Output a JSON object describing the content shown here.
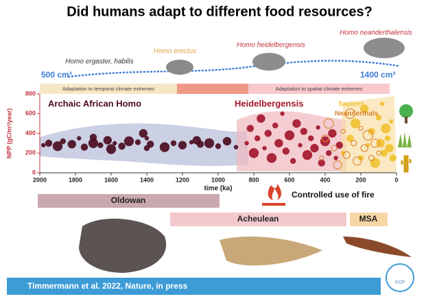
{
  "title": "Did humans adapt to different food resources?",
  "species": [
    "Homo ergaster, habilis",
    "Homo erectus",
    "Homo  heidelbergensis",
    "Homo  neanderthalensis"
  ],
  "brain_volume_start": "500 cm³",
  "brain_volume_end": "1400 cm³",
  "climate_bands": [
    "Adaptation to temporal climate extremes",
    "Adaptation to spatial climate extremes"
  ],
  "chart_data": {
    "type": "scatter",
    "ylabel": "NPP (gC/m²/year)",
    "xlabel": "time (ka)",
    "xlim": [
      2000,
      0
    ],
    "xticks": [
      2000,
      1800,
      1600,
      1400,
      1200,
      1000,
      800,
      600,
      400,
      200,
      0
    ],
    "ylim": [
      0,
      800
    ],
    "yticks": [
      0,
      200,
      400,
      600,
      800
    ],
    "series": [
      {
        "name": "Archaic African Homo",
        "color": "#4a0a1e",
        "x": [
          1980,
          1950,
          1900,
          1870,
          1820,
          1780,
          1750,
          1700,
          1660,
          1620,
          1580,
          1540,
          1500,
          1450,
          1420,
          1400,
          1380,
          1300,
          1250,
          1200,
          1150,
          1100,
          1050,
          1000,
          950,
          900,
          1700,
          1600,
          1400,
          1120
        ],
        "values": [
          280,
          300,
          270,
          320,
          290,
          350,
          260,
          300,
          280,
          330,
          300,
          270,
          320,
          310,
          400,
          350,
          290,
          260,
          300,
          280,
          310,
          290,
          300,
          270,
          320,
          260,
          360,
          240,
          250,
          330
        ]
      },
      {
        "name": "Heidelbergensis",
        "color": "#a3142a",
        "x": [
          840,
          820,
          800,
          780,
          760,
          740,
          720,
          700,
          680,
          660,
          640,
          620,
          600,
          580,
          560,
          540,
          520,
          500,
          480,
          460,
          440,
          420,
          400,
          380,
          360,
          340,
          320
        ],
        "values": [
          300,
          450,
          200,
          350,
          550,
          250,
          400,
          150,
          480,
          300,
          600,
          220,
          380,
          120,
          500,
          280,
          420,
          180,
          350,
          250,
          460,
          100,
          320,
          200,
          400,
          150,
          280
        ]
      },
      {
        "name": "Sapiens",
        "color": "#f2c230",
        "x": [
          300,
          260,
          230,
          200,
          180,
          160,
          140,
          120,
          100,
          90,
          80,
          70,
          60,
          50,
          40,
          30,
          20
        ],
        "values": [
          200,
          350,
          500,
          150,
          650,
          280,
          420,
          100,
          560,
          300,
          700,
          200,
          450,
          350,
          250,
          520,
          150
        ]
      },
      {
        "name": "Neanderthals",
        "color": "#d9822b",
        "open": true,
        "x": [
          420,
          400,
          380,
          350,
          330,
          300,
          280,
          260,
          240,
          220,
          200,
          180,
          160,
          140,
          120,
          100
        ],
        "values": [
          150,
          350,
          500,
          250,
          80,
          420,
          180,
          600,
          300,
          120,
          450,
          250,
          380,
          150,
          300,
          200
        ]
      }
    ]
  },
  "industries": [
    "Oldowan",
    "Acheulean",
    "MSA"
  ],
  "fire_label": "Controlled use of fire",
  "citation": "Timmermann et al. 2022, Nature, in press",
  "logo": "ICCP"
}
